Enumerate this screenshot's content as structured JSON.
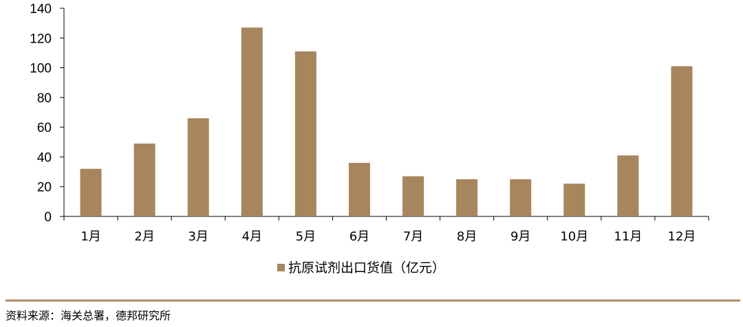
{
  "chart_data": {
    "type": "bar",
    "categories": [
      "1月",
      "2月",
      "3月",
      "4月",
      "5月",
      "6月",
      "7月",
      "8月",
      "9月",
      "10月",
      "11月",
      "12月"
    ],
    "series": [
      {
        "name": "抗原试剂出口货值（亿元）",
        "values": [
          32,
          49,
          66,
          127,
          111,
          36,
          27,
          25,
          25,
          22,
          41,
          101
        ]
      }
    ],
    "ylim": [
      0,
      140
    ],
    "yticks": [
      0,
      20,
      40,
      60,
      80,
      100,
      120,
      140
    ],
    "grid": false,
    "legend": "bottom-center",
    "colors": {
      "bar": "#a7855d",
      "axis": "#000000"
    }
  },
  "footer": {
    "source": "资料来源：海关总署，德邦研究所"
  }
}
